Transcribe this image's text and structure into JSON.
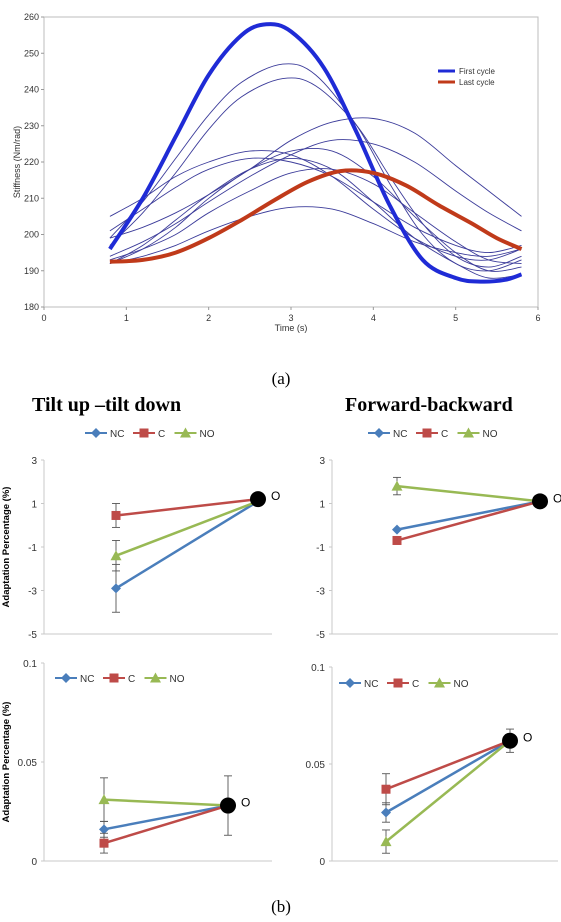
{
  "captions": {
    "a": "(a)",
    "b": "(b)"
  },
  "column_titles": {
    "left": "Tilt up –tilt down",
    "right": "Forward-backward"
  },
  "legend_labels": {
    "nc": "NC",
    "c": "C",
    "no": "NO"
  },
  "colors": {
    "nc": "#4a7ebb",
    "c": "#be4b48",
    "no": "#98b954",
    "first_cycle": "#1f2bd6",
    "last_cycle": "#c03a1a",
    "thin": "#3c3c9a",
    "marker": "#000000"
  },
  "chart_data": [
    {
      "id": "stiffness",
      "type": "line",
      "xlabel": "Time (s)",
      "ylabel": "Stiffness (Nm/rad)",
      "xlim": [
        0,
        6
      ],
      "ylim": [
        180,
        260
      ],
      "xticks": [
        0,
        1,
        2,
        3,
        4,
        5,
        6
      ],
      "yticks": [
        180,
        190,
        200,
        210,
        220,
        230,
        240,
        250,
        260
      ],
      "legend_position": "right",
      "series": [
        {
          "name": "First cycle",
          "role": "first",
          "x": [
            0.8,
            1.2,
            1.6,
            2.0,
            2.4,
            2.7,
            3.0,
            3.4,
            3.8,
            4.2,
            4.6,
            5.0,
            5.3,
            5.6,
            5.8
          ],
          "y": [
            196,
            210,
            227,
            244,
            255,
            258,
            256,
            246,
            228,
            208,
            193,
            188,
            187,
            187.5,
            189
          ]
        },
        {
          "name": "Last cycle",
          "role": "last",
          "x": [
            0.8,
            1.2,
            1.6,
            2.0,
            2.4,
            2.8,
            3.2,
            3.6,
            4.0,
            4.4,
            4.8,
            5.2,
            5.5,
            5.8
          ],
          "y": [
            192.5,
            193,
            195,
            199,
            204,
            209.5,
            214.5,
            217.5,
            217,
            213.5,
            208,
            203,
            199,
            196
          ]
        },
        {
          "role": "thin",
          "x": [
            0.8,
            1.2,
            1.6,
            2.0,
            2.4,
            2.9,
            3.3,
            3.8,
            4.2,
            4.6,
            5.0,
            5.4,
            5.8
          ],
          "y": [
            199,
            209,
            221,
            233,
            242,
            247,
            244,
            230,
            214,
            200,
            192,
            190,
            193
          ]
        },
        {
          "role": "thin",
          "x": [
            0.8,
            1.2,
            1.6,
            2.0,
            2.4,
            2.9,
            3.3,
            3.8,
            4.2,
            4.6,
            5.0,
            5.4,
            5.8
          ],
          "y": [
            197,
            206,
            217,
            229,
            238,
            243,
            241,
            230,
            216,
            203,
            194,
            191,
            194
          ]
        },
        {
          "role": "thin",
          "x": [
            0.8,
            1.2,
            1.6,
            2.0,
            2.5,
            3.0,
            3.5,
            4.0,
            4.5,
            5.0,
            5.4,
            5.8
          ],
          "y": [
            205,
            210,
            216,
            220,
            223,
            222,
            216,
            207,
            199,
            194,
            193,
            196
          ]
        },
        {
          "role": "thin",
          "x": [
            0.8,
            1.2,
            1.6,
            2.0,
            2.5,
            3.0,
            3.5,
            4.0,
            4.5,
            5.0,
            5.4,
            5.8
          ],
          "y": [
            201,
            207,
            213,
            218,
            221,
            220,
            216,
            209,
            202,
            197,
            195,
            197
          ]
        },
        {
          "role": "thin",
          "x": [
            0.8,
            1.2,
            1.6,
            2.0,
            2.5,
            3.0,
            3.5,
            4.0,
            4.5,
            5.0,
            5.4,
            5.8
          ],
          "y": [
            199,
            202,
            206,
            211,
            218,
            226,
            231,
            232,
            228,
            219,
            212,
            205
          ]
        },
        {
          "role": "thin",
          "x": [
            0.8,
            1.2,
            1.6,
            2.0,
            2.5,
            3.0,
            3.5,
            4.0,
            4.5,
            5.0,
            5.4,
            5.8
          ],
          "y": [
            194,
            198,
            203,
            209,
            216,
            222,
            226,
            225,
            220,
            212,
            206,
            201
          ]
        },
        {
          "role": "thin",
          "x": [
            0.8,
            1.2,
            1.6,
            2.0,
            2.5,
            3.0,
            3.5,
            4.0,
            4.5,
            5.0,
            5.4,
            5.8
          ],
          "y": [
            192,
            194,
            197,
            201,
            205,
            207.5,
            207,
            203,
            198,
            195,
            194,
            196
          ]
        },
        {
          "role": "thin",
          "x": [
            0.8,
            1.2,
            1.6,
            2.0,
            2.5,
            3.0,
            3.5,
            4.0,
            4.5,
            5.0,
            5.4,
            5.8
          ],
          "y": [
            193,
            196,
            200,
            206,
            212,
            217,
            218,
            214,
            206,
            198,
            193,
            192
          ]
        },
        {
          "role": "thin",
          "x": [
            0.8,
            1.2,
            1.6,
            2.0,
            2.5,
            3.0,
            3.5,
            4.0,
            4.5,
            5.0,
            5.4,
            5.8
          ],
          "y": [
            192,
            197,
            204,
            211,
            218,
            221,
            218,
            209,
            199,
            192,
            188,
            189
          ]
        },
        {
          "role": "thin",
          "x": [
            0.8,
            1.2,
            1.6,
            2.0,
            2.5,
            3.0,
            3.5,
            4.0,
            4.5,
            5.0,
            5.4,
            5.8
          ],
          "y": [
            192,
            196,
            202,
            210,
            218,
            223,
            223,
            216,
            205,
            195,
            190,
            191
          ]
        }
      ]
    },
    {
      "id": "tilt-mean",
      "type": "line",
      "ylabel": "Adaptation Percentage (%)",
      "ylim": [
        -5,
        3
      ],
      "yticks": [
        "3",
        "1",
        "-1",
        "-3",
        "-5"
      ],
      "y_values": [
        3,
        1,
        -1,
        -3,
        -5
      ],
      "end_marker_label": "O",
      "end_point": {
        "x": 1,
        "y": 1.2
      },
      "series": [
        {
          "name": "NC",
          "key": "nc",
          "marker": "diamond",
          "points": [
            {
              "y": -2.9,
              "err": 1.1
            },
            {
              "y": 1.1
            }
          ]
        },
        {
          "name": "C",
          "key": "c",
          "marker": "square",
          "points": [
            {
              "y": 0.45,
              "err": 0.55
            },
            {
              "y": 1.2
            }
          ]
        },
        {
          "name": "NO",
          "key": "no",
          "marker": "triangle",
          "points": [
            {
              "y": -1.4,
              "err": 0.7
            },
            {
              "y": 1.1
            }
          ]
        }
      ]
    },
    {
      "id": "forward-mean",
      "type": "line",
      "ylim": [
        -5,
        3
      ],
      "yticks": [
        "3",
        "1",
        "-1",
        "-3",
        "-5"
      ],
      "y_values": [
        3,
        1,
        -1,
        -3,
        -5
      ],
      "end_marker_label": "O",
      "end_point": {
        "x": 1,
        "y": 1.1
      },
      "series": [
        {
          "name": "NC",
          "key": "nc",
          "marker": "diamond",
          "points": [
            {
              "y": -0.2
            },
            {
              "y": 1.1
            }
          ]
        },
        {
          "name": "C",
          "key": "c",
          "marker": "square",
          "points": [
            {
              "y": -0.7
            },
            {
              "y": 1.1
            }
          ]
        },
        {
          "name": "NO",
          "key": "no",
          "marker": "triangle",
          "points": [
            {
              "y": 1.8,
              "err": 0.4
            },
            {
              "y": 1.1
            }
          ]
        }
      ]
    },
    {
      "id": "tilt-sd",
      "type": "line",
      "ylabel": "Adaptation Percentage (%)",
      "ylim": [
        0,
        0.1
      ],
      "yticks": [
        "0.1",
        "0.05",
        "0"
      ],
      "y_values": [
        0.1,
        0.05,
        0
      ],
      "end_marker_label": "O",
      "end_point": {
        "x": 1,
        "y": 0.028
      },
      "series": [
        {
          "name": "NC",
          "key": "nc",
          "marker": "diamond",
          "points": [
            {
              "y": 0.016,
              "err": 0.004
            },
            {
              "y": 0.028
            }
          ]
        },
        {
          "name": "C",
          "key": "c",
          "marker": "square",
          "points": [
            {
              "y": 0.009,
              "err": 0.005
            },
            {
              "y": 0.028,
              "err": 0.015
            }
          ]
        },
        {
          "name": "NO",
          "key": "no",
          "marker": "triangle",
          "points": [
            {
              "y": 0.031,
              "err": 0.011
            },
            {
              "y": 0.028
            }
          ]
        }
      ]
    },
    {
      "id": "forward-sd",
      "type": "line",
      "ylim": [
        0,
        0.1
      ],
      "yticks": [
        "0.1",
        "0.05",
        "0"
      ],
      "y_values": [
        0.1,
        0.05,
        0
      ],
      "end_marker_label": "O",
      "end_point": {
        "x": 1,
        "y": 0.062
      },
      "series": [
        {
          "name": "NC",
          "key": "nc",
          "marker": "diamond",
          "points": [
            {
              "y": 0.025,
              "err": 0.005
            },
            {
              "y": 0.062
            }
          ]
        },
        {
          "name": "C",
          "key": "c",
          "marker": "square",
          "points": [
            {
              "y": 0.037,
              "err": 0.008
            },
            {
              "y": 0.062,
              "err": 0.006
            }
          ]
        },
        {
          "name": "NO",
          "key": "no",
          "marker": "triangle",
          "points": [
            {
              "y": 0.01,
              "err": 0.006
            },
            {
              "y": 0.062
            }
          ]
        }
      ]
    }
  ]
}
